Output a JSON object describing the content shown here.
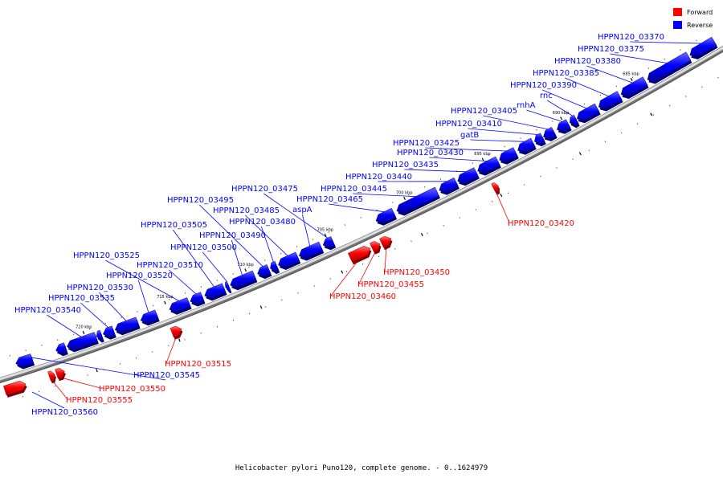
{
  "legend": {
    "forward": {
      "label": "Forward",
      "color": "#ff0000"
    },
    "reverse": {
      "label": "Reverse",
      "color": "#0000ff"
    }
  },
  "caption": "Helicobacter pylori Puno120, complete genome. - 0..1624979",
  "colors": {
    "forward": "#ff0000",
    "reverse": "#0000ff",
    "backbone": "#999999"
  },
  "kbp_ticks": [
    "685 kbp",
    "690 kbp",
    "695 kbp",
    "700 kbp",
    "705 kbp",
    "710 kbp",
    "715 kbp",
    "720 kbp"
  ],
  "genes": [
    {
      "name": "HPPN120_03370",
      "strand": "reverse"
    },
    {
      "name": "HPPN120_03375",
      "strand": "reverse"
    },
    {
      "name": "HPPN120_03380",
      "strand": "reverse"
    },
    {
      "name": "HPPN120_03385",
      "strand": "reverse"
    },
    {
      "name": "HPPN120_03390",
      "strand": "reverse"
    },
    {
      "name": "rnc",
      "strand": "reverse"
    },
    {
      "name": "rnhA",
      "strand": "reverse"
    },
    {
      "name": "HPPN120_03405",
      "strand": "reverse"
    },
    {
      "name": "HPPN120_03410",
      "strand": "reverse"
    },
    {
      "name": "gatB",
      "strand": "reverse"
    },
    {
      "name": "HPPN120_03425",
      "strand": "reverse"
    },
    {
      "name": "HPPN120_03430",
      "strand": "reverse"
    },
    {
      "name": "HPPN120_03435",
      "strand": "reverse"
    },
    {
      "name": "HPPN120_03440",
      "strand": "reverse"
    },
    {
      "name": "HPPN120_03445",
      "strand": "reverse"
    },
    {
      "name": "HPPN120_03465",
      "strand": "reverse"
    },
    {
      "name": "HPPN120_03475",
      "strand": "reverse"
    },
    {
      "name": "aspA",
      "strand": "reverse"
    },
    {
      "name": "HPPN120_03485",
      "strand": "reverse"
    },
    {
      "name": "HPPN120_03480",
      "strand": "reverse"
    },
    {
      "name": "HPPN120_03495",
      "strand": "reverse"
    },
    {
      "name": "HPPN120_03490",
      "strand": "reverse"
    },
    {
      "name": "HPPN120_03500",
      "strand": "reverse"
    },
    {
      "name": "HPPN120_03505",
      "strand": "reverse"
    },
    {
      "name": "HPPN120_03510",
      "strand": "reverse"
    },
    {
      "name": "HPPN120_03525",
      "strand": "reverse"
    },
    {
      "name": "HPPN120_03520",
      "strand": "reverse"
    },
    {
      "name": "HPPN120_03530",
      "strand": "reverse"
    },
    {
      "name": "HPPN120_03535",
      "strand": "reverse"
    },
    {
      "name": "HPPN120_03540",
      "strand": "reverse"
    },
    {
      "name": "HPPN120_03545",
      "strand": "reverse"
    },
    {
      "name": "HPPN120_03560",
      "strand": "reverse"
    },
    {
      "name": "HPPN120_03420",
      "strand": "forward"
    },
    {
      "name": "HPPN120_03450",
      "strand": "forward"
    },
    {
      "name": "HPPN120_03455",
      "strand": "forward"
    },
    {
      "name": "HPPN120_03460",
      "strand": "forward"
    },
    {
      "name": "HPPN120_03515",
      "strand": "forward"
    },
    {
      "name": "HPPN120_03550",
      "strand": "forward"
    },
    {
      "name": "HPPN120_03555",
      "strand": "forward"
    }
  ]
}
